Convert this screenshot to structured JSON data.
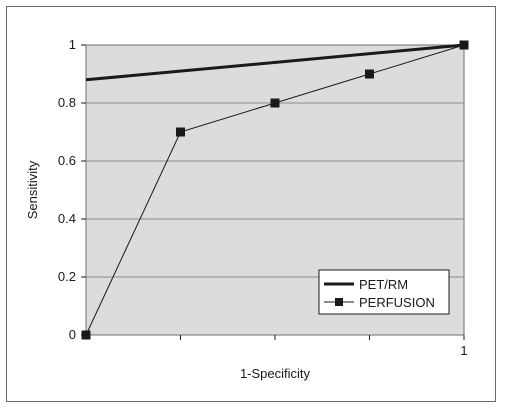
{
  "chart_data": {
    "type": "line",
    "title": "",
    "xlabel": "1-Specificity",
    "ylabel": "Sensitivity",
    "xlim": [
      0,
      1
    ],
    "ylim": [
      0,
      1
    ],
    "x_tick_labels": [
      {
        "value": 1,
        "label": "1"
      }
    ],
    "x_tick_marks": [
      0.25,
      0.5,
      0.75,
      1
    ],
    "y_ticks": [
      0,
      0.2,
      0.4,
      0.6,
      0.8,
      1
    ],
    "y_tick_labels": [
      "0",
      "0.2",
      "0.4",
      "0.6",
      "0.8",
      "1"
    ],
    "grid": "horizontal",
    "legend_position": "bottom-right",
    "series": [
      {
        "name": "PET/RM",
        "color": "#1a1a1a",
        "marker": "none",
        "x": [
          0,
          1
        ],
        "y": [
          0.88,
          1
        ]
      },
      {
        "name": "PERFUSION",
        "color": "#1a1a1a",
        "marker": "square",
        "x": [
          0,
          0.25,
          0.5,
          0.75,
          1
        ],
        "y": [
          0,
          0.7,
          0.8,
          0.9,
          1
        ]
      }
    ]
  }
}
